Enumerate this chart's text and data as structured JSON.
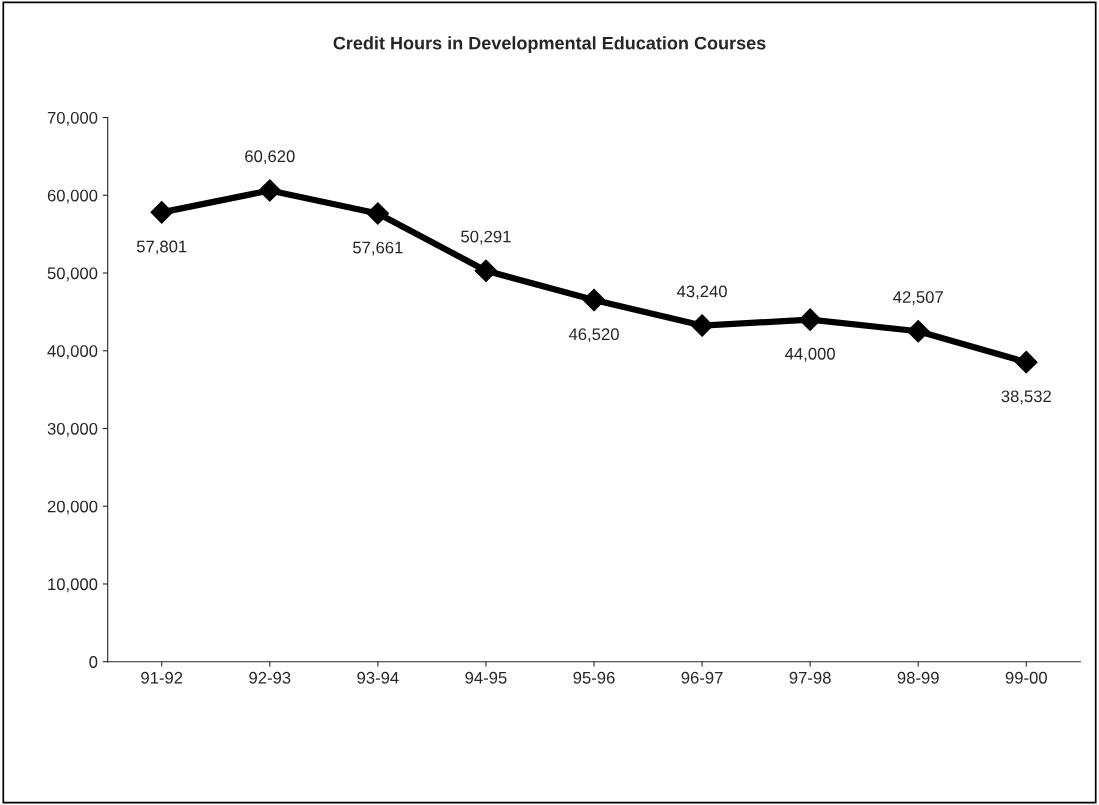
{
  "chart_data": {
    "type": "line",
    "title": "Credit Hours in Developmental Education Courses",
    "categories": [
      "91-92",
      "92-93",
      "93-94",
      "94-95",
      "95-96",
      "96-97",
      "97-98",
      "98-99",
      "99-00"
    ],
    "series": [
      {
        "color": "#000000",
        "values": [
          57801,
          60620,
          57661,
          50291,
          46520,
          43240,
          44000,
          42507,
          38532
        ],
        "value_labels": [
          "57,801",
          "60,620",
          "57,661",
          "50,291",
          "46,520",
          "43,240",
          "44,000",
          "42,507",
          "38,532"
        ]
      }
    ],
    "ylim": [
      0,
      70000
    ],
    "yticks": [
      0,
      {
        "value": 10000,
        "label": "10,000"
      },
      {
        "value": 20000,
        "label": "20,000"
      },
      {
        "value": 30000,
        "label": "30,000"
      },
      {
        "value": 40000,
        "label": "40,000"
      },
      {
        "value": 50000,
        "label": "50,000"
      },
      {
        "value": 60000,
        "label": "60,000"
      },
      {
        "value": 70000,
        "label": "70,000"
      }
    ],
    "grid": false,
    "legend": false,
    "marker": "diamond",
    "line_style": "solid"
  }
}
